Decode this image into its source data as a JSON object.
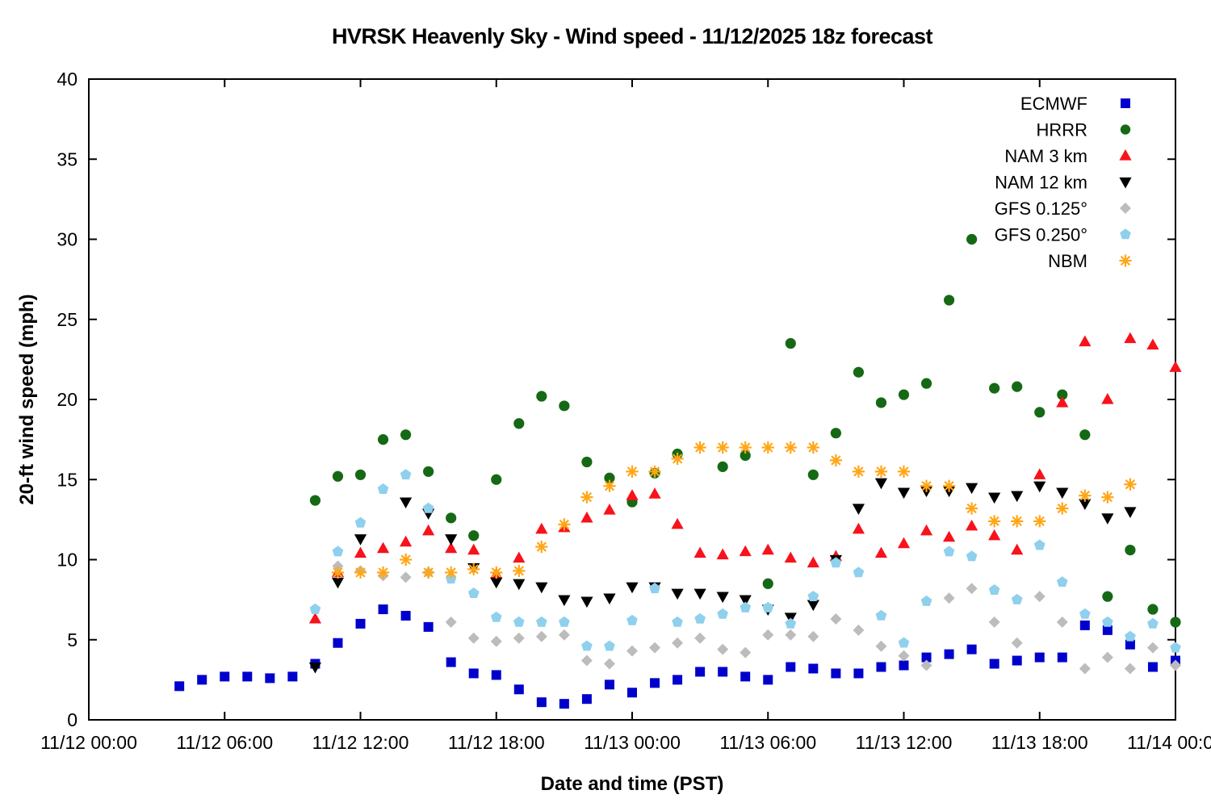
{
  "chart_data": {
    "type": "scatter",
    "title": "HVRSK Heavenly Sky - Wind speed - 11/12/2025 18z forecast",
    "xlabel": "Date and time (PST)",
    "ylabel": "20-ft wind speed (mph)",
    "x_unit": "hours since 11/12 00:00 PST",
    "xlim": [
      0,
      48
    ],
    "ylim": [
      0,
      40
    ],
    "y_ticks": [
      0,
      5,
      10,
      15,
      20,
      25,
      30,
      35,
      40
    ],
    "x_ticks": [
      {
        "hour": 0,
        "label": "11/12 00:00"
      },
      {
        "hour": 6,
        "label": "11/12 06:00"
      },
      {
        "hour": 12,
        "label": "11/12 12:00"
      },
      {
        "hour": 18,
        "label": "11/12 18:00"
      },
      {
        "hour": 24,
        "label": "11/13 00:00"
      },
      {
        "hour": 30,
        "label": "11/13 06:00"
      },
      {
        "hour": 36,
        "label": "11/13 12:00"
      },
      {
        "hour": 42,
        "label": "11/13 18:00"
      },
      {
        "hour": 48,
        "label": "11/14 00:00"
      }
    ],
    "grid": false,
    "legend_position": "top-right-inside",
    "series": [
      {
        "id": "ecmwf",
        "name": "ECMWF",
        "marker": "square",
        "color": "#0000cd",
        "points": [
          [
            4,
            2.1
          ],
          [
            5,
            2.5
          ],
          [
            6,
            2.7
          ],
          [
            7,
            2.7
          ],
          [
            8,
            2.6
          ],
          [
            9,
            2.7
          ],
          [
            10,
            3.5
          ],
          [
            11,
            4.8
          ],
          [
            12,
            6.0
          ],
          [
            13,
            6.9
          ],
          [
            14,
            6.5
          ],
          [
            15,
            5.8
          ],
          [
            16,
            3.6
          ],
          [
            17,
            2.9
          ],
          [
            18,
            2.8
          ],
          [
            19,
            1.9
          ],
          [
            20,
            1.1
          ],
          [
            21,
            1.0
          ],
          [
            22,
            1.3
          ],
          [
            23,
            2.2
          ],
          [
            24,
            1.7
          ],
          [
            25,
            2.3
          ],
          [
            26,
            2.5
          ],
          [
            27,
            3.0
          ],
          [
            28,
            3.0
          ],
          [
            29,
            2.7
          ],
          [
            30,
            2.5
          ],
          [
            31,
            3.3
          ],
          [
            32,
            3.2
          ],
          [
            33,
            2.9
          ],
          [
            34,
            2.9
          ],
          [
            35,
            3.3
          ],
          [
            36,
            3.4
          ],
          [
            37,
            3.9
          ],
          [
            38,
            4.1
          ],
          [
            39,
            4.4
          ],
          [
            40,
            3.5
          ],
          [
            41,
            3.7
          ],
          [
            42,
            3.9
          ],
          [
            43,
            3.9
          ],
          [
            44,
            5.9
          ],
          [
            45,
            5.6
          ],
          [
            46,
            4.7
          ],
          [
            47,
            3.3
          ],
          [
            48,
            3.7
          ]
        ]
      },
      {
        "id": "hrrr",
        "name": "HRRR",
        "marker": "circle",
        "color": "#156915",
        "points": [
          [
            10,
            13.7
          ],
          [
            11,
            15.2
          ],
          [
            12,
            15.3
          ],
          [
            13,
            17.5
          ],
          [
            14,
            17.8
          ],
          [
            15,
            15.5
          ],
          [
            16,
            12.6
          ],
          [
            17,
            11.5
          ],
          [
            18,
            15.0
          ],
          [
            19,
            18.5
          ],
          [
            20,
            20.2
          ],
          [
            21,
            19.6
          ],
          [
            22,
            16.1
          ],
          [
            23,
            15.1
          ],
          [
            24,
            13.6
          ],
          [
            25,
            15.4
          ],
          [
            26,
            16.6
          ],
          [
            28,
            15.8
          ],
          [
            29,
            16.5
          ],
          [
            30,
            8.5
          ],
          [
            31,
            23.5
          ],
          [
            32,
            15.3
          ],
          [
            33,
            17.9
          ],
          [
            34,
            21.7
          ],
          [
            35,
            19.8
          ],
          [
            36,
            20.3
          ],
          [
            37,
            21.0
          ],
          [
            38,
            26.2
          ],
          [
            39,
            30.0
          ],
          [
            40,
            20.7
          ],
          [
            41,
            20.8
          ],
          [
            42,
            19.2
          ],
          [
            43,
            20.3
          ],
          [
            44,
            17.8
          ],
          [
            45,
            7.7
          ],
          [
            46,
            10.6
          ],
          [
            47,
            6.9
          ],
          [
            48,
            6.1
          ]
        ]
      },
      {
        "id": "nam3km",
        "name": "NAM 3 km",
        "marker": "triangle-up",
        "color": "#f8121b",
        "points": [
          [
            10,
            6.3
          ],
          [
            11,
            9.2
          ],
          [
            12,
            10.4
          ],
          [
            13,
            10.7
          ],
          [
            14,
            11.1
          ],
          [
            15,
            11.8
          ],
          [
            16,
            10.7
          ],
          [
            17,
            10.6
          ],
          [
            18,
            9.1
          ],
          [
            19,
            10.1
          ],
          [
            20,
            11.9
          ],
          [
            21,
            12.0
          ],
          [
            22,
            12.6
          ],
          [
            23,
            13.1
          ],
          [
            24,
            14.0
          ],
          [
            25,
            14.1
          ],
          [
            26,
            12.2
          ],
          [
            27,
            10.4
          ],
          [
            28,
            10.3
          ],
          [
            29,
            10.5
          ],
          [
            30,
            10.6
          ],
          [
            31,
            10.1
          ],
          [
            32,
            9.8
          ],
          [
            33,
            10.2
          ],
          [
            34,
            11.9
          ],
          [
            35,
            10.4
          ],
          [
            36,
            11.0
          ],
          [
            37,
            11.8
          ],
          [
            38,
            11.4
          ],
          [
            39,
            12.1
          ],
          [
            40,
            11.5
          ],
          [
            41,
            10.6
          ],
          [
            42,
            15.3
          ],
          [
            43,
            19.8
          ],
          [
            44,
            23.6
          ],
          [
            45,
            20.0
          ],
          [
            46,
            23.8
          ],
          [
            47,
            23.4
          ],
          [
            48,
            22.0
          ]
        ]
      },
      {
        "id": "nam12km",
        "name": "NAM 12 km",
        "marker": "triangle-down",
        "color": "#000000",
        "points": [
          [
            10,
            3.3
          ],
          [
            11,
            8.6
          ],
          [
            12,
            11.3
          ],
          [
            14,
            13.6
          ],
          [
            15,
            12.9
          ],
          [
            16,
            11.3
          ],
          [
            17,
            9.5
          ],
          [
            18,
            8.6
          ],
          [
            19,
            8.5
          ],
          [
            20,
            8.3
          ],
          [
            21,
            7.5
          ],
          [
            22,
            7.4
          ],
          [
            23,
            7.6
          ],
          [
            24,
            8.3
          ],
          [
            25,
            8.3
          ],
          [
            26,
            7.9
          ],
          [
            27,
            7.9
          ],
          [
            28,
            7.7
          ],
          [
            29,
            7.5
          ],
          [
            30,
            6.9
          ],
          [
            31,
            6.4
          ],
          [
            32,
            7.2
          ],
          [
            33,
            10.0
          ],
          [
            34,
            13.2
          ],
          [
            35,
            14.8
          ],
          [
            36,
            14.2
          ],
          [
            37,
            14.3
          ],
          [
            38,
            14.3
          ],
          [
            39,
            14.5
          ],
          [
            40,
            13.9
          ],
          [
            41,
            14.0
          ],
          [
            42,
            14.6
          ],
          [
            43,
            14.2
          ],
          [
            44,
            13.5
          ],
          [
            45,
            12.6
          ],
          [
            46,
            13.0
          ]
        ]
      },
      {
        "id": "gfs0125",
        "name": "GFS 0.125°",
        "marker": "diamond",
        "color": "#bcbcbc",
        "points": [
          [
            11,
            9.6
          ],
          [
            12,
            9.3
          ],
          [
            13,
            9.0
          ],
          [
            14,
            8.9
          ],
          [
            15,
            9.2
          ],
          [
            16,
            6.1
          ],
          [
            17,
            5.1
          ],
          [
            18,
            4.9
          ],
          [
            19,
            5.1
          ],
          [
            20,
            5.2
          ],
          [
            21,
            5.3
          ],
          [
            22,
            3.7
          ],
          [
            23,
            3.5
          ],
          [
            24,
            4.3
          ],
          [
            25,
            4.5
          ],
          [
            26,
            4.8
          ],
          [
            27,
            5.1
          ],
          [
            28,
            4.4
          ],
          [
            29,
            4.2
          ],
          [
            30,
            5.3
          ],
          [
            31,
            5.3
          ],
          [
            32,
            5.2
          ],
          [
            33,
            6.3
          ],
          [
            34,
            5.6
          ],
          [
            35,
            4.6
          ],
          [
            36,
            4.0
          ],
          [
            37,
            3.4
          ],
          [
            38,
            7.6
          ],
          [
            39,
            8.2
          ],
          [
            40,
            6.1
          ],
          [
            41,
            4.8
          ],
          [
            42,
            7.7
          ],
          [
            43,
            6.1
          ],
          [
            44,
            3.2
          ],
          [
            45,
            3.9
          ],
          [
            46,
            3.2
          ],
          [
            47,
            4.5
          ],
          [
            48,
            3.4
          ]
        ]
      },
      {
        "id": "gfs0250",
        "name": "GFS 0.250°",
        "marker": "pentagon",
        "color": "#8fd0ec",
        "points": [
          [
            10,
            6.9
          ],
          [
            11,
            10.5
          ],
          [
            12,
            12.3
          ],
          [
            13,
            14.4
          ],
          [
            14,
            15.3
          ],
          [
            15,
            13.2
          ],
          [
            16,
            8.8
          ],
          [
            17,
            7.9
          ],
          [
            18,
            6.4
          ],
          [
            19,
            6.1
          ],
          [
            20,
            6.1
          ],
          [
            21,
            6.1
          ],
          [
            22,
            4.6
          ],
          [
            23,
            4.6
          ],
          [
            24,
            6.2
          ],
          [
            25,
            8.2
          ],
          [
            26,
            6.1
          ],
          [
            27,
            6.3
          ],
          [
            28,
            6.6
          ],
          [
            29,
            7.0
          ],
          [
            30,
            7.0
          ],
          [
            31,
            6.0
          ],
          [
            32,
            7.7
          ],
          [
            33,
            9.8
          ],
          [
            34,
            9.2
          ],
          [
            35,
            6.5
          ],
          [
            36,
            4.8
          ],
          [
            37,
            7.4
          ],
          [
            38,
            10.5
          ],
          [
            39,
            10.2
          ],
          [
            40,
            8.1
          ],
          [
            41,
            7.5
          ],
          [
            42,
            10.9
          ],
          [
            43,
            8.6
          ],
          [
            44,
            6.6
          ],
          [
            45,
            6.1
          ],
          [
            46,
            5.2
          ],
          [
            47,
            6.0
          ],
          [
            48,
            4.5
          ]
        ]
      },
      {
        "id": "nbm",
        "name": "NBM",
        "marker": "asterisk",
        "color": "#ffa617",
        "points": [
          [
            11,
            9.2
          ],
          [
            12,
            9.2
          ],
          [
            13,
            9.2
          ],
          [
            14,
            10.0
          ],
          [
            15,
            9.2
          ],
          [
            16,
            9.2
          ],
          [
            17,
            9.4
          ],
          [
            18,
            9.2
          ],
          [
            19,
            9.3
          ],
          [
            20,
            10.8
          ],
          [
            21,
            12.2
          ],
          [
            22,
            13.9
          ],
          [
            23,
            14.6
          ],
          [
            24,
            15.5
          ],
          [
            25,
            15.5
          ],
          [
            26,
            16.3
          ],
          [
            27,
            17.0
          ],
          [
            28,
            17.0
          ],
          [
            29,
            17.0
          ],
          [
            30,
            17.0
          ],
          [
            31,
            17.0
          ],
          [
            32,
            17.0
          ],
          [
            33,
            16.2
          ],
          [
            34,
            15.5
          ],
          [
            35,
            15.5
          ],
          [
            36,
            15.5
          ],
          [
            37,
            14.6
          ],
          [
            38,
            14.6
          ],
          [
            39,
            13.2
          ],
          [
            40,
            12.4
          ],
          [
            41,
            12.4
          ],
          [
            42,
            12.4
          ],
          [
            43,
            13.2
          ],
          [
            44,
            14.0
          ],
          [
            45,
            13.9
          ],
          [
            46,
            14.7
          ]
        ]
      }
    ]
  }
}
